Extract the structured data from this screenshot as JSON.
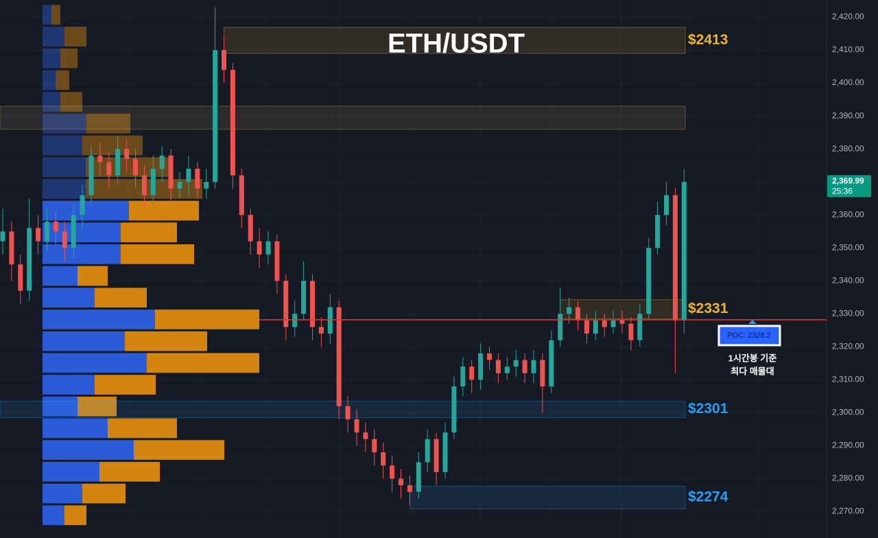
{
  "chart_data": {
    "type": "candlestick",
    "title": "ETH/USDT",
    "up_color": "#26a69a",
    "down_color": "#ef5350",
    "ylim": [
      2262,
      2425.2
    ],
    "yticks": [
      {
        "value": 2270,
        "label": "2,270.00"
      },
      {
        "value": 2280,
        "label": "2,280.00"
      },
      {
        "value": 2290,
        "label": "2,290.00"
      },
      {
        "value": 2300,
        "label": "2,300.00"
      },
      {
        "value": 2310,
        "label": "2,310.00"
      },
      {
        "value": 2320,
        "label": "2,320.00"
      },
      {
        "value": 2330,
        "label": "2,330.00"
      },
      {
        "value": 2340,
        "label": "2,340.00"
      },
      {
        "value": 2350,
        "label": "2,350.00"
      },
      {
        "value": 2360,
        "label": "2,360.00"
      },
      {
        "value": 2370,
        "label": "2,370.00"
      },
      {
        "value": 2380,
        "label": "2,380.00"
      },
      {
        "value": 2390,
        "label": "2,390.00"
      },
      {
        "value": 2400,
        "label": "2,400.00"
      },
      {
        "value": 2410,
        "label": "2,410.00"
      },
      {
        "value": 2420,
        "label": "2,420.00"
      }
    ],
    "grid": true,
    "open": [
      2352,
      2355,
      2345,
      2337,
      2356,
      2352,
      2358,
      2355,
      2350,
      2360,
      2366,
      2378,
      2376,
      2372,
      2380,
      2377,
      2372,
      2366,
      2374,
      2378,
      2368,
      2370,
      2374,
      2368,
      2370,
      2410,
      2404,
      2372,
      2360,
      2352,
      2348,
      2352,
      2340,
      2326,
      2330,
      2340,
      2326,
      2324,
      2332,
      2302,
      2298,
      2294,
      2292,
      2288,
      2284,
      2280,
      2278,
      2276,
      2285,
      2292,
      2282,
      2294,
      2308,
      2314,
      2310,
      2318,
      2316,
      2312,
      2314,
      2316,
      2312,
      2316,
      2308,
      2322,
      2330,
      2332,
      2328,
      2324,
      2328,
      2326,
      2328,
      2327,
      2322,
      2330,
      2350,
      2360,
      2366,
      2328
    ],
    "high": [
      2362,
      2358,
      2348,
      2365,
      2360,
      2362,
      2361,
      2358,
      2363,
      2369,
      2381,
      2382,
      2379,
      2384,
      2383,
      2380,
      2375,
      2378,
      2381,
      2380,
      2373,
      2378,
      2376,
      2374,
      2423,
      2414,
      2406,
      2374,
      2362,
      2356,
      2355,
      2354,
      2342,
      2334,
      2346,
      2342,
      2329,
      2336,
      2334,
      2305,
      2301,
      2297,
      2295,
      2291,
      2287,
      2283,
      2281,
      2288,
      2295,
      2294,
      2297,
      2311,
      2317,
      2316,
      2321,
      2320,
      2318,
      2317,
      2319,
      2318,
      2319,
      2318,
      2325,
      2338,
      2335,
      2334,
      2330,
      2331,
      2330,
      2331,
      2331,
      2329,
      2333,
      2353,
      2364,
      2370,
      2368,
      2374
    ],
    "low": [
      2348,
      2340,
      2333,
      2334,
      2348,
      2349,
      2351,
      2346,
      2347,
      2356,
      2363,
      2372,
      2368,
      2369,
      2373,
      2368,
      2362,
      2363,
      2370,
      2364,
      2365,
      2366,
      2365,
      2365,
      2368,
      2400,
      2368,
      2356,
      2348,
      2344,
      2345,
      2336,
      2322,
      2323,
      2328,
      2322,
      2320,
      2321,
      2298,
      2294,
      2290,
      2288,
      2284,
      2280,
      2276,
      2274,
      2272,
      2274,
      2282,
      2278,
      2280,
      2292,
      2305,
      2306,
      2307,
      2313,
      2309,
      2310,
      2311,
      2309,
      2309,
      2300,
      2306,
      2320,
      2327,
      2325,
      2321,
      2322,
      2323,
      2324,
      2324,
      2319,
      2320,
      2328,
      2348,
      2357,
      2312,
      2324
    ],
    "close": [
      2355,
      2345,
      2337,
      2356,
      2352,
      2358,
      2355,
      2350,
      2360,
      2366,
      2378,
      2376,
      2372,
      2380,
      2377,
      2372,
      2366,
      2374,
      2378,
      2368,
      2370,
      2374,
      2368,
      2370,
      2410,
      2404,
      2372,
      2360,
      2352,
      2348,
      2352,
      2340,
      2326,
      2330,
      2340,
      2326,
      2324,
      2332,
      2302,
      2298,
      2294,
      2292,
      2288,
      2284,
      2280,
      2278,
      2276,
      2285,
      2292,
      2282,
      2294,
      2308,
      2314,
      2310,
      2318,
      2316,
      2312,
      2314,
      2316,
      2312,
      2316,
      2308,
      2322,
      2330,
      2332,
      2328,
      2324,
      2328,
      2326,
      2328,
      2327,
      2322,
      2330,
      2350,
      2360,
      2366,
      2328,
      2369.99
    ],
    "profile": {
      "buy_color": "#2c5bd8",
      "sell_color": "#d4850f",
      "bins": [
        2424,
        2417.4,
        2410.8,
        2404.2,
        2397.6,
        2391,
        2384.4,
        2377.8,
        2371.2,
        2364.6,
        2358,
        2351.4,
        2344.8,
        2338.2,
        2331.6,
        2325,
        2318.4,
        2311.8,
        2305.2,
        2298.6,
        2292,
        2285.4,
        2278.8,
        2272.2,
        2265.6
      ],
      "buy": [
        13,
        32,
        26,
        19,
        26,
        64,
        58,
        63,
        63,
        126,
        114,
        114,
        51,
        76,
        164,
        120,
        152,
        76,
        51,
        95,
        133,
        83,
        58,
        32
      ],
      "sell": [
        13,
        32,
        25,
        20,
        32,
        64,
        88,
        125,
        170,
        102,
        82,
        107,
        44,
        76,
        152,
        120,
        164,
        89,
        57,
        101,
        132,
        88,
        63,
        32
      ]
    },
    "zones": [
      {
        "low": 2409,
        "high": 2416.9,
        "from": 25,
        "label": "$2413",
        "color": "#f0b429"
      },
      {
        "low": 2386,
        "high": 2393,
        "from": 0,
        "color": "#c8b070"
      },
      {
        "low": 2328.5,
        "high": 2334.3,
        "from": 63,
        "label": "$2331",
        "color": "#f0b429"
      },
      {
        "low": 2298.5,
        "high": 2303.5,
        "from": 0,
        "label": "$2301",
        "color": "#2a9df4"
      },
      {
        "low": 2270.8,
        "high": 2277.7,
        "from": 46,
        "label": "$2274",
        "color": "#2a9df4"
      }
    ],
    "poc": {
      "value": 2328.2,
      "label": "POC: 2328.2",
      "note": [
        "1시간봉 기준",
        "최다 매물대"
      ],
      "color": "#e53935"
    },
    "last_price": {
      "value": 2369.99,
      "label": "2,369.99",
      "timer": "25:36",
      "color": "#089981"
    }
  }
}
